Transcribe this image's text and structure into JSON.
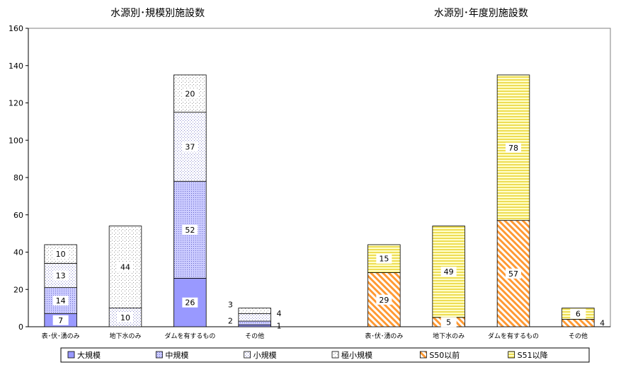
{
  "chart_data": {
    "type": "bar",
    "stacked": true,
    "ylim": [
      0,
      160
    ],
    "yticks": [
      0,
      20,
      40,
      60,
      80,
      100,
      120,
      140,
      160
    ],
    "grid": "horizontal-dotted",
    "legend_position": "bottom",
    "groups": [
      {
        "title": "水源別･規模別施設数",
        "categories": [
          "表･伏･湧のみ",
          "地下水のみ",
          "ダムを有するもの",
          "その他"
        ],
        "series": [
          {
            "name": "大規模",
            "values": [
              7,
              0,
              26,
              1
            ],
            "color": "#9999ff",
            "pattern": "solid"
          },
          {
            "name": "中規模",
            "values": [
              14,
              0,
              52,
              2
            ],
            "color": "#9999ff",
            "pattern": "dots-dense"
          },
          {
            "name": "小規模",
            "values": [
              13,
              10,
              37,
              4
            ],
            "color": "#9999ff",
            "pattern": "dots-sparse"
          },
          {
            "name": "極小規模",
            "values": [
              10,
              44,
              20,
              3
            ],
            "color": "#666666",
            "pattern": "dots-fine"
          }
        ]
      },
      {
        "title": "水源別･年度別施設数",
        "categories": [
          "表･伏･湧のみ",
          "地下水のみ",
          "ダムを有するもの",
          "その他"
        ],
        "series": [
          {
            "name": "S50以前",
            "values": [
              29,
              5,
              57,
              4
            ],
            "color": "#ff9933",
            "pattern": "diagonal"
          },
          {
            "name": "S51以降",
            "values": [
              15,
              49,
              78,
              6
            ],
            "color": "#ffff99",
            "pattern": "horizontal-lines"
          }
        ]
      }
    ]
  }
}
